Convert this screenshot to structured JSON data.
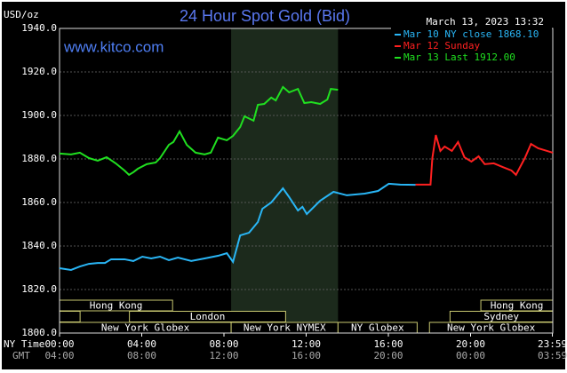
{
  "chart_data": {
    "type": "line",
    "title": "24 Hour Spot Gold (Bid)",
    "unit_label": "USD/oz",
    "timestamp": "March 13, 2023 13:32",
    "watermark": "www.kitco.com",
    "x_row_label": "NY Time",
    "x2_row_label": "GMT",
    "xlim": [
      0,
      24
    ],
    "xticks": [
      {
        "value": 0,
        "label": "00:00"
      },
      {
        "value": 4,
        "label": "04:00"
      },
      {
        "value": 8,
        "label": "08:00"
      },
      {
        "value": 12,
        "label": "12:00"
      },
      {
        "value": 16,
        "label": "16:00"
      },
      {
        "value": 20,
        "label": "20:00"
      },
      {
        "value": 23.98,
        "label": "23:59"
      }
    ],
    "x2_labels": [
      "04:00",
      "08:00",
      "12:00",
      "16:00",
      "20:00",
      "00:00",
      "03:59"
    ],
    "ylim": [
      1800,
      1940
    ],
    "yticks": [
      {
        "value": 1800,
        "label": "1800.0"
      },
      {
        "value": 1820,
        "label": "1820.0"
      },
      {
        "value": 1840,
        "label": "1840.0"
      },
      {
        "value": 1860,
        "label": "1860.0"
      },
      {
        "value": 1880,
        "label": "1880.0"
      },
      {
        "value": 1900,
        "label": "1900.0"
      },
      {
        "value": 1920,
        "label": "1920.0"
      },
      {
        "value": 1940,
        "label": "1940.0"
      }
    ],
    "grid": true,
    "legend": "top-right",
    "shaded_range": [
      8.35,
      13.55
    ],
    "series": [
      {
        "name": "Mar 10 NY close 1868.10",
        "color": "#29b6f6",
        "x": [
          0,
          0.56,
          0.99,
          1.43,
          1.86,
          2.21,
          2.51,
          3.16,
          3.59,
          4.03,
          4.46,
          4.89,
          5.32,
          5.76,
          6.41,
          7.06,
          7.71,
          8.14,
          8.44,
          8.79,
          9.22,
          9.65,
          9.87,
          10.3,
          10.87,
          11.17,
          11.6,
          11.82,
          12.03,
          12.68,
          13.33,
          13.98,
          14.85,
          15.5,
          16.02,
          16.58,
          17.32
        ],
        "values": [
          1829.8,
          1829.0,
          1830.6,
          1831.8,
          1832.2,
          1832.2,
          1833.9,
          1833.9,
          1833.1,
          1835.1,
          1834.3,
          1835.1,
          1833.5,
          1834.7,
          1833.1,
          1834.3,
          1835.5,
          1836.7,
          1832.7,
          1844.9,
          1846.1,
          1851.0,
          1857.1,
          1860.0,
          1866.5,
          1862.5,
          1856.3,
          1858.0,
          1854.7,
          1860.8,
          1864.9,
          1863.3,
          1864.1,
          1865.3,
          1868.6,
          1868.2,
          1868.1
        ]
      },
      {
        "name": "Mar 12 Sunday",
        "color": "#ff2020",
        "x": [
          17.32,
          18.05,
          18.14,
          18.31,
          18.53,
          18.74,
          19.09,
          19.39,
          19.7,
          20.04,
          20.39,
          20.69,
          21.13,
          21.56,
          21.99,
          22.21,
          22.64,
          22.94,
          23.29,
          23.72,
          24.0
        ],
        "values": [
          1868.2,
          1868.2,
          1880.4,
          1891.0,
          1883.7,
          1885.7,
          1883.7,
          1887.8,
          1880.8,
          1878.8,
          1881.2,
          1877.6,
          1878.0,
          1876.3,
          1874.7,
          1872.7,
          1880.4,
          1886.9,
          1884.9,
          1883.7,
          1882.9
        ]
      },
      {
        "name": "Mar 13 Last 1912.00",
        "color": "#20e020",
        "x": [
          0,
          0.56,
          0.99,
          1.43,
          1.86,
          2.29,
          2.73,
          3.16,
          3.38,
          3.59,
          3.81,
          4.24,
          4.68,
          4.89,
          5.32,
          5.54,
          5.84,
          6.19,
          6.62,
          7.06,
          7.36,
          7.71,
          8.14,
          8.44,
          8.79,
          9.0,
          9.44,
          9.65,
          9.96,
          10.3,
          10.52,
          10.87,
          11.17,
          11.6,
          11.91,
          12.25,
          12.68,
          13.03,
          13.2,
          13.55
        ],
        "values": [
          1882.5,
          1882.1,
          1882.9,
          1880.4,
          1879.2,
          1880.8,
          1878.0,
          1874.7,
          1872.7,
          1873.9,
          1875.5,
          1877.6,
          1878.4,
          1880.4,
          1886.5,
          1887.8,
          1892.7,
          1886.5,
          1882.9,
          1882.1,
          1882.9,
          1889.8,
          1888.6,
          1890.6,
          1894.7,
          1899.6,
          1897.6,
          1904.9,
          1905.3,
          1908.2,
          1906.9,
          1913.1,
          1910.6,
          1912.2,
          1905.7,
          1906.1,
          1905.3,
          1907.3,
          1912.2,
          1911.8
        ]
      }
    ],
    "sessions": [
      {
        "label": "Hong Kong",
        "row": 0,
        "start": 0,
        "end": 5.5
      },
      {
        "label": "Hong Kong",
        "row": 0,
        "start": 20.5,
        "end": 24
      },
      {
        "label": null,
        "row": 1,
        "start": 0,
        "end": 1.0
      },
      {
        "label": "London",
        "row": 1,
        "start": 3.4,
        "end": 11.0
      },
      {
        "label": "Sydney",
        "row": 1,
        "start": 19.0,
        "end": 24
      },
      {
        "label": "New York Globex",
        "row": 2,
        "start": 0,
        "end": 8.35
      },
      {
        "label": "New York NYMEX",
        "row": 2,
        "start": 8.35,
        "end": 13.55
      },
      {
        "label": "NY Globex",
        "row": 2,
        "start": 13.55,
        "end": 17.4
      },
      {
        "label": "New York Globex",
        "row": 2,
        "start": 18.0,
        "end": 24
      }
    ]
  }
}
